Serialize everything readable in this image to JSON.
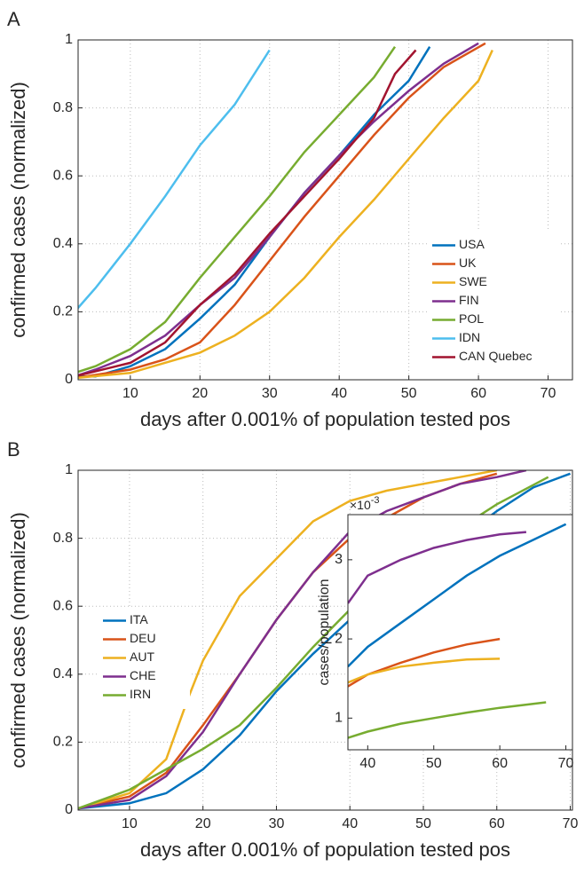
{
  "chart_data": [
    {
      "type": "line",
      "panel_label": "A",
      "xlabel": "days after 0.001% of population tested pos",
      "ylabel": "confirmed cases (normalized)",
      "xlim": [
        2.5,
        73.5
      ],
      "xticks": [
        10,
        20,
        30,
        40,
        50,
        60,
        70
      ],
      "ylim": [
        0,
        1
      ],
      "yticks": [
        0,
        0.2,
        0.4,
        0.6,
        0.8,
        1
      ],
      "grid": true,
      "legend": "lower right",
      "series": [
        {
          "name": "USA",
          "color": "#0072bd",
          "x": [
            2,
            5,
            10,
            15,
            20,
            25,
            30,
            35,
            40,
            45,
            50,
            53
          ],
          "values": [
            0.01,
            0.01,
            0.04,
            0.09,
            0.18,
            0.28,
            0.42,
            0.55,
            0.66,
            0.78,
            0.88,
            0.98
          ]
        },
        {
          "name": "UK",
          "color": "#d95319",
          "x": [
            2,
            10,
            15,
            20,
            25,
            30,
            35,
            40,
            45,
            50,
            55,
            61
          ],
          "values": [
            0.005,
            0.03,
            0.06,
            0.11,
            0.22,
            0.35,
            0.48,
            0.6,
            0.72,
            0.83,
            0.92,
            0.99
          ]
        },
        {
          "name": "SWE",
          "color": "#edb120",
          "x": [
            2,
            10,
            20,
            25,
            30,
            35,
            40,
            45,
            50,
            55,
            60,
            62
          ],
          "values": [
            0.005,
            0.02,
            0.08,
            0.13,
            0.2,
            0.3,
            0.42,
            0.53,
            0.65,
            0.77,
            0.88,
            0.97
          ]
        },
        {
          "name": "FIN",
          "color": "#7e2f8e",
          "x": [
            2,
            5,
            10,
            15,
            20,
            25,
            30,
            35,
            40,
            45,
            50,
            55,
            60
          ],
          "values": [
            0.01,
            0.03,
            0.07,
            0.13,
            0.22,
            0.3,
            0.42,
            0.55,
            0.66,
            0.76,
            0.85,
            0.93,
            0.99
          ]
        },
        {
          "name": "POL",
          "color": "#77ac30",
          "x": [
            2,
            5,
            10,
            15,
            20,
            25,
            30,
            35,
            40,
            45,
            48
          ],
          "values": [
            0.02,
            0.04,
            0.09,
            0.17,
            0.3,
            0.42,
            0.54,
            0.67,
            0.78,
            0.89,
            0.98
          ]
        },
        {
          "name": "IDN",
          "color": "#4dbeee",
          "x": [
            2,
            5,
            10,
            15,
            20,
            25,
            30
          ],
          "values": [
            0.2,
            0.27,
            0.4,
            0.54,
            0.69,
            0.81,
            0.97
          ]
        },
        {
          "name": "CAN Quebec",
          "color": "#a2142f",
          "x": [
            2,
            10,
            15,
            20,
            25,
            30,
            35,
            40,
            45,
            48,
            51
          ],
          "values": [
            0.01,
            0.05,
            0.11,
            0.22,
            0.31,
            0.43,
            0.54,
            0.65,
            0.77,
            0.9,
            0.97
          ]
        }
      ]
    },
    {
      "type": "line",
      "panel_label": "B",
      "xlabel": "days after 0.001% of population tested pos",
      "ylabel": "confirmed cases (normalized)",
      "xlim": [
        3,
        70.3
      ],
      "xticks": [
        10,
        20,
        30,
        40,
        50,
        60,
        70
      ],
      "ylim": [
        0,
        1
      ],
      "yticks": [
        0,
        0.2,
        0.4,
        0.6,
        0.8,
        1
      ],
      "grid": true,
      "legend": "center left",
      "series": [
        {
          "name": "ITA",
          "color": "#0072bd",
          "x": [
            3,
            10,
            15,
            20,
            25,
            30,
            35,
            40,
            45,
            50,
            55,
            60,
            65,
            70
          ],
          "values": [
            0.005,
            0.02,
            0.05,
            0.12,
            0.22,
            0.35,
            0.46,
            0.56,
            0.65,
            0.73,
            0.8,
            0.88,
            0.95,
            0.99
          ]
        },
        {
          "name": "DEU",
          "color": "#d95319",
          "x": [
            3,
            10,
            15,
            20,
            25,
            30,
            35,
            40,
            45,
            50,
            55,
            60
          ],
          "values": [
            0.005,
            0.04,
            0.11,
            0.25,
            0.4,
            0.56,
            0.7,
            0.8,
            0.86,
            0.92,
            0.96,
            0.99
          ]
        },
        {
          "name": "AUT",
          "color": "#edb120",
          "x": [
            3,
            10,
            15,
            18,
            20,
            25,
            30,
            35,
            40,
            45,
            50,
            55,
            60
          ],
          "values": [
            0.005,
            0.05,
            0.15,
            0.33,
            0.44,
            0.63,
            0.74,
            0.85,
            0.91,
            0.94,
            0.96,
            0.98,
            1
          ]
        },
        {
          "name": "CHE",
          "color": "#7e2f8e",
          "x": [
            3,
            10,
            15,
            20,
            25,
            30,
            35,
            40,
            45,
            50,
            55,
            60,
            64
          ],
          "values": [
            0.005,
            0.03,
            0.1,
            0.23,
            0.4,
            0.56,
            0.7,
            0.82,
            0.88,
            0.92,
            0.96,
            0.98,
            1
          ]
        },
        {
          "name": "IRN",
          "color": "#77ac30",
          "x": [
            3,
            10,
            15,
            20,
            25,
            30,
            35,
            40,
            45,
            50,
            55,
            60,
            67
          ],
          "values": [
            0.005,
            0.06,
            0.12,
            0.18,
            0.25,
            0.36,
            0.48,
            0.59,
            0.68,
            0.76,
            0.83,
            0.9,
            0.98
          ]
        }
      ]
    },
    {
      "type": "line",
      "ylabel": "cases/population",
      "exponent_base": "×10",
      "exponent_power": "-3",
      "xlim": [
        37,
        71
      ],
      "xticks": [
        40,
        50,
        60,
        70
      ],
      "ylim": [
        0.6,
        3.57
      ],
      "yticks": [
        1,
        2,
        3
      ],
      "grid": false,
      "series": [
        {
          "color": "#0072bd",
          "x": [
            37,
            40,
            45,
            50,
            55,
            60,
            65,
            70
          ],
          "values": [
            1.65,
            1.9,
            2.2,
            2.5,
            2.8,
            3.05,
            3.25,
            3.45
          ]
        },
        {
          "color": "#d95319",
          "x": [
            37,
            40,
            45,
            50,
            55,
            60
          ],
          "values": [
            1.4,
            1.55,
            1.7,
            1.83,
            1.93,
            2
          ]
        },
        {
          "color": "#edb120",
          "x": [
            37,
            40,
            45,
            50,
            55,
            60
          ],
          "values": [
            1.45,
            1.55,
            1.65,
            1.7,
            1.74,
            1.75
          ]
        },
        {
          "color": "#7e2f8e",
          "x": [
            37,
            40,
            45,
            50,
            55,
            60,
            64
          ],
          "values": [
            2.45,
            2.8,
            3,
            3.15,
            3.25,
            3.32,
            3.35
          ]
        },
        {
          "color": "#77ac30",
          "x": [
            37,
            40,
            45,
            50,
            55,
            60,
            67
          ],
          "values": [
            0.75,
            0.83,
            0.93,
            1,
            1.07,
            1.13,
            1.2
          ]
        }
      ]
    }
  ]
}
